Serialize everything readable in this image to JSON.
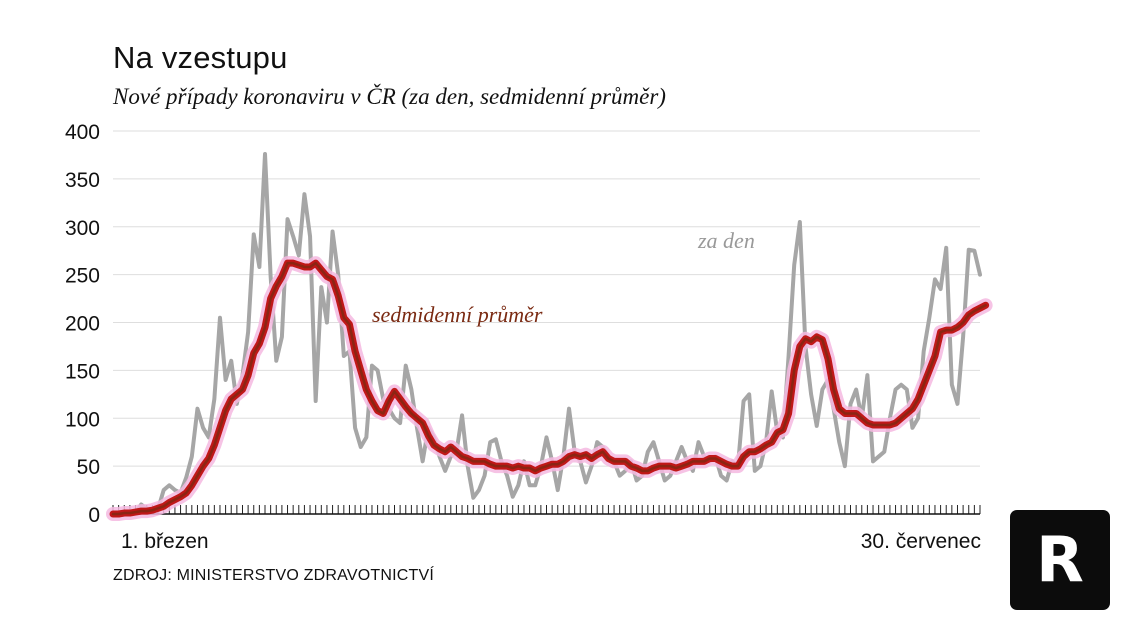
{
  "header": {
    "title": "Na vzestupu",
    "subtitle": "Nové případy koronaviru v ČR (za den, sedmidenní průměr)"
  },
  "footer": {
    "source": "ZDROJ: MINISTERSTVO ZDRAVOTNICTVÍ"
  },
  "logo": {
    "text": "R"
  },
  "colors": {
    "daily": "#a6a6a6",
    "avg": "#c01818",
    "avg_core": "#7a2a12",
    "avg_glow": "#f4b8e0",
    "ann_avg": "#7a2a12",
    "ann_daily": "#999999"
  },
  "chart_data": {
    "type": "line",
    "ylim": [
      0,
      400
    ],
    "yticks": [
      0,
      50,
      100,
      150,
      200,
      250,
      300,
      350,
      400
    ],
    "x_tick_labels": [
      "1. březen",
      "30. červenec"
    ],
    "annotations": {
      "daily": "za den",
      "avg": "sedmidenní průměr"
    },
    "series": [
      {
        "key": "daily",
        "name": "za den",
        "values": [
          0,
          1,
          1,
          2,
          1,
          10,
          5,
          3,
          5,
          25,
          30,
          25,
          22,
          38,
          60,
          110,
          90,
          80,
          120,
          205,
          140,
          160,
          115,
          145,
          190,
          292,
          258,
          376,
          248,
          160,
          185,
          308,
          290,
          270,
          334,
          290,
          118,
          237,
          200,
          295,
          250,
          165,
          170,
          90,
          70,
          80,
          155,
          150,
          120,
          110,
          100,
          95,
          155,
          130,
          90,
          55,
          90,
          80,
          60,
          45,
          60,
          65,
          103,
          50,
          17,
          25,
          40,
          75,
          78,
          55,
          40,
          18,
          30,
          55,
          30,
          30,
          50,
          80,
          55,
          25,
          60,
          110,
          65,
          55,
          33,
          50,
          75,
          70,
          60,
          55,
          40,
          45,
          55,
          35,
          40,
          65,
          75,
          55,
          35,
          40,
          55,
          70,
          55,
          45,
          75,
          60,
          55,
          60,
          40,
          35,
          55,
          50,
          118,
          125,
          45,
          50,
          75,
          128,
          85,
          80,
          165,
          260,
          305,
          175,
          125,
          92,
          130,
          140,
          110,
          75,
          50,
          115,
          130,
          100,
          145,
          55,
          60,
          65,
          100,
          130,
          135,
          130,
          90,
          100,
          170,
          205,
          245,
          235,
          278,
          135,
          115,
          185,
          276,
          275,
          250
        ]
      },
      {
        "key": "avg",
        "name": "sedmidenní průměr",
        "values": [
          0,
          0,
          1,
          1,
          2,
          3,
          3,
          4,
          6,
          8,
          12,
          15,
          18,
          22,
          30,
          40,
          50,
          58,
          72,
          90,
          108,
          120,
          125,
          130,
          145,
          168,
          178,
          195,
          225,
          238,
          248,
          262,
          262,
          260,
          258,
          258,
          262,
          255,
          248,
          245,
          228,
          205,
          198,
          170,
          150,
          130,
          118,
          108,
          105,
          118,
          128,
          120,
          112,
          105,
          100,
          95,
          82,
          72,
          68,
          65,
          70,
          65,
          60,
          58,
          55,
          55,
          55,
          52,
          50,
          50,
          50,
          48,
          50,
          48,
          48,
          45,
          48,
          50,
          52,
          52,
          55,
          60,
          62,
          60,
          62,
          58,
          62,
          65,
          58,
          55,
          55,
          55,
          50,
          48,
          45,
          45,
          48,
          50,
          50,
          50,
          48,
          50,
          52,
          55,
          55,
          55,
          58,
          58,
          55,
          52,
          50,
          50,
          60,
          65,
          65,
          68,
          72,
          75,
          85,
          88,
          105,
          150,
          175,
          183,
          180,
          185,
          182,
          162,
          130,
          110,
          105,
          105,
          105,
          100,
          95,
          93,
          93,
          93,
          93,
          95,
          100,
          105,
          110,
          120,
          135,
          150,
          165,
          190,
          192,
          192,
          195,
          200,
          208,
          212,
          215,
          218
        ]
      }
    ]
  }
}
